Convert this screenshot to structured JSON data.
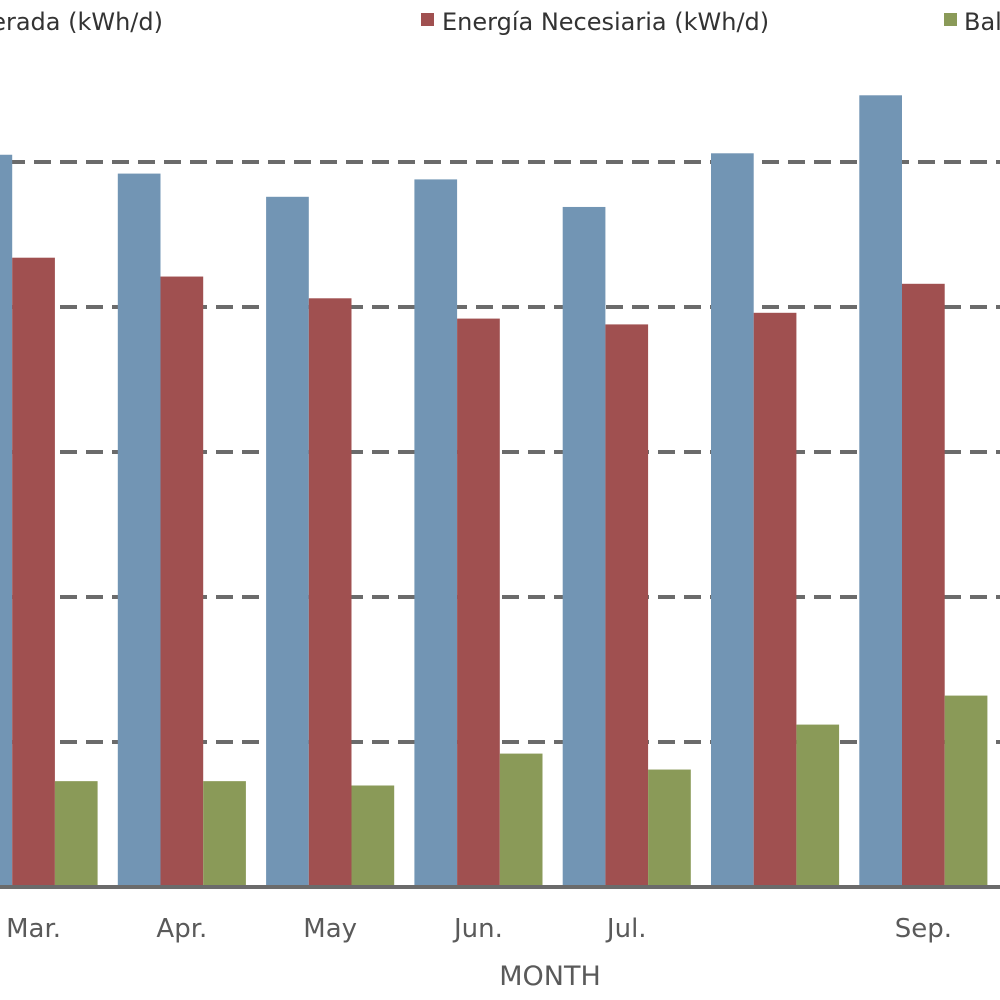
{
  "chart_data": {
    "type": "bar",
    "title": "",
    "xlabel": "MONTH",
    "ylabel": "",
    "categories": [
      "Mar.",
      "Apr.",
      "May",
      "Jun.",
      "Jul.",
      "",
      "Sep."
    ],
    "series": [
      {
        "name": "Energía Generada (kWh/d)",
        "color": "#7295b4",
        "values": [
          5.05,
          4.92,
          4.76,
          4.88,
          4.69,
          5.06,
          5.46
        ]
      },
      {
        "name": "Energía Necesiaria (kWh/d)",
        "color": "#a05050",
        "values": [
          4.34,
          4.21,
          4.06,
          3.92,
          3.88,
          3.96,
          4.16
        ]
      },
      {
        "name": "Balance (kWh/d)",
        "color": "#8a9a58",
        "values": [
          0.73,
          0.73,
          0.7,
          0.92,
          0.81,
          1.12,
          1.32
        ]
      }
    ],
    "ylim": [
      0,
      6.1
    ],
    "gridlines": [
      1,
      2,
      3,
      4,
      5
    ],
    "grid": true,
    "legend_placement": "top",
    "note": "values in gridline units; y tick labels not visible"
  },
  "colors": {
    "grid": "#6b6b6b",
    "axis": "#6b6b6b",
    "text": "#5a5a5a"
  }
}
